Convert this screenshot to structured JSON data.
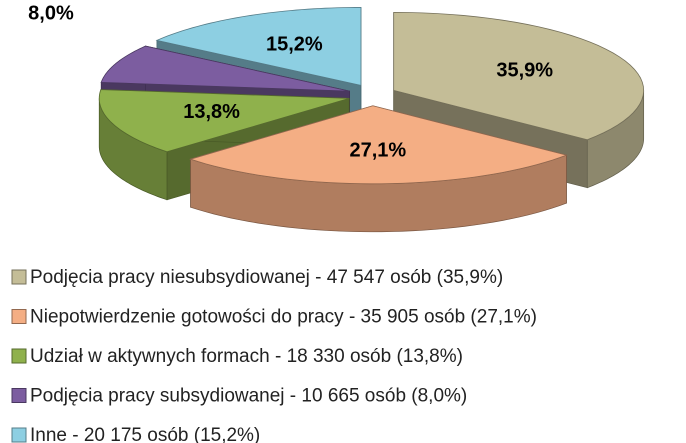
{
  "chart_data": {
    "type": "pie",
    "categories": [
      "Podjęcia pracy niesubsydiowanej - 47 547 osób (35,9%)",
      "Niepotwierdzenie gotowości do pracy - 35 905 osób (27,1%)",
      "Udział w aktywnych formach - 18 330 osób (13,8%)",
      "Podjęcia pracy subsydiowanej - 10 665 osób (8,0%)",
      "Inne - 20 175 osób (15,2%)"
    ],
    "values": [
      35.9,
      27.1,
      13.8,
      8.0,
      15.2
    ],
    "value_labels": [
      "35,9%",
      "27,1%",
      "13,8%",
      "8,0%",
      "15,2%"
    ],
    "colors": [
      "#c4bd97",
      "#f4ae84",
      "#8fb14c",
      "#7c5da0",
      "#8dcfe2"
    ],
    "legend": "bottom"
  }
}
